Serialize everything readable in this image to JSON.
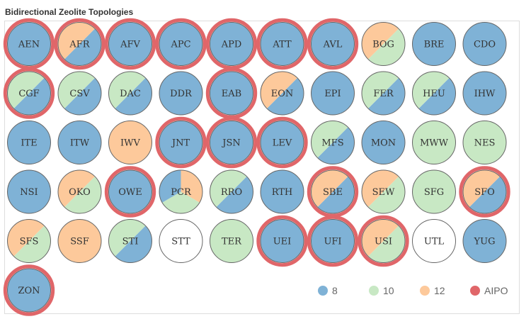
{
  "chart_data": {
    "type": "pie",
    "title": "Bidirectional Zeolite Topologies",
    "series": [
      {
        "key": "8",
        "name": "8",
        "color": "#7fb2d6"
      },
      {
        "key": "10",
        "name": "10",
        "color": "#c8e8c4"
      },
      {
        "key": "12",
        "name": "12",
        "color": "#fdc99b"
      },
      {
        "key": "AIPO",
        "name": "AIPO",
        "color": "#e06669"
      }
    ],
    "nodes": [
      {
        "label": "AEN",
        "rings": [
          "8"
        ],
        "aipo": true
      },
      {
        "label": "AFR",
        "rings": [
          "8",
          "12"
        ],
        "aipo": true
      },
      {
        "label": "AFV",
        "rings": [
          "8"
        ],
        "aipo": true
      },
      {
        "label": "APC",
        "rings": [
          "8"
        ],
        "aipo": true
      },
      {
        "label": "APD",
        "rings": [
          "8"
        ],
        "aipo": true
      },
      {
        "label": "ATT",
        "rings": [
          "8"
        ],
        "aipo": true
      },
      {
        "label": "AVL",
        "rings": [
          "8"
        ],
        "aipo": true
      },
      {
        "label": "BOG",
        "rings": [
          "10",
          "12"
        ],
        "aipo": false
      },
      {
        "label": "BRE",
        "rings": [
          "8"
        ],
        "aipo": false
      },
      {
        "label": "CDO",
        "rings": [
          "8"
        ],
        "aipo": false
      },
      {
        "label": "CGF",
        "rings": [
          "8",
          "10"
        ],
        "aipo": true
      },
      {
        "label": "CSV",
        "rings": [
          "8",
          "10"
        ],
        "aipo": false
      },
      {
        "label": "DAC",
        "rings": [
          "8",
          "10"
        ],
        "aipo": false
      },
      {
        "label": "DDR",
        "rings": [
          "8"
        ],
        "aipo": false
      },
      {
        "label": "EAB",
        "rings": [
          "8"
        ],
        "aipo": true
      },
      {
        "label": "EON",
        "rings": [
          "8",
          "12"
        ],
        "aipo": false
      },
      {
        "label": "EPI",
        "rings": [
          "8"
        ],
        "aipo": false
      },
      {
        "label": "FER",
        "rings": [
          "8",
          "10"
        ],
        "aipo": false
      },
      {
        "label": "HEU",
        "rings": [
          "8",
          "10"
        ],
        "aipo": false
      },
      {
        "label": "IHW",
        "rings": [
          "8"
        ],
        "aipo": false
      },
      {
        "label": "ITE",
        "rings": [
          "8"
        ],
        "aipo": false
      },
      {
        "label": "ITW",
        "rings": [
          "8"
        ],
        "aipo": false
      },
      {
        "label": "IWV",
        "rings": [
          "12"
        ],
        "aipo": false
      },
      {
        "label": "JNT",
        "rings": [
          "8"
        ],
        "aipo": true
      },
      {
        "label": "JSN",
        "rings": [
          "8"
        ],
        "aipo": true
      },
      {
        "label": "LEV",
        "rings": [
          "8"
        ],
        "aipo": true
      },
      {
        "label": "MFS",
        "rings": [
          "8",
          "10"
        ],
        "aipo": false
      },
      {
        "label": "MON",
        "rings": [
          "8"
        ],
        "aipo": false
      },
      {
        "label": "MWW",
        "rings": [
          "10"
        ],
        "aipo": false
      },
      {
        "label": "NES",
        "rings": [
          "10"
        ],
        "aipo": false
      },
      {
        "label": "NSI",
        "rings": [
          "8"
        ],
        "aipo": false
      },
      {
        "label": "OKO",
        "rings": [
          "10",
          "12"
        ],
        "aipo": false
      },
      {
        "label": "OWE",
        "rings": [
          "8"
        ],
        "aipo": true
      },
      {
        "label": "PCR",
        "rings": [
          "8",
          "10",
          "12"
        ],
        "aipo": false
      },
      {
        "label": "RRO",
        "rings": [
          "8",
          "10"
        ],
        "aipo": false
      },
      {
        "label": "RTH",
        "rings": [
          "8"
        ],
        "aipo": false
      },
      {
        "label": "SBE",
        "rings": [
          "8",
          "12"
        ],
        "aipo": true
      },
      {
        "label": "SEW",
        "rings": [
          "10",
          "12"
        ],
        "aipo": false
      },
      {
        "label": "SFG",
        "rings": [
          "10"
        ],
        "aipo": false
      },
      {
        "label": "SFO",
        "rings": [
          "8",
          "12"
        ],
        "aipo": true
      },
      {
        "label": "SFS",
        "rings": [
          "10",
          "12"
        ],
        "aipo": false
      },
      {
        "label": "SSF",
        "rings": [
          "12"
        ],
        "aipo": false
      },
      {
        "label": "STI",
        "rings": [
          "8",
          "10"
        ],
        "aipo": false
      },
      {
        "label": "STT",
        "rings": [],
        "aipo": false
      },
      {
        "label": "TER",
        "rings": [
          "10"
        ],
        "aipo": false
      },
      {
        "label": "UEI",
        "rings": [
          "8"
        ],
        "aipo": true
      },
      {
        "label": "UFI",
        "rings": [
          "8"
        ],
        "aipo": true
      },
      {
        "label": "USI",
        "rings": [
          "10",
          "12"
        ],
        "aipo": true
      },
      {
        "label": "UTL",
        "rings": [],
        "aipo": false
      },
      {
        "label": "YUG",
        "rings": [
          "8"
        ],
        "aipo": false
      },
      {
        "label": "ZON",
        "rings": [
          "8"
        ],
        "aipo": true
      }
    ]
  }
}
